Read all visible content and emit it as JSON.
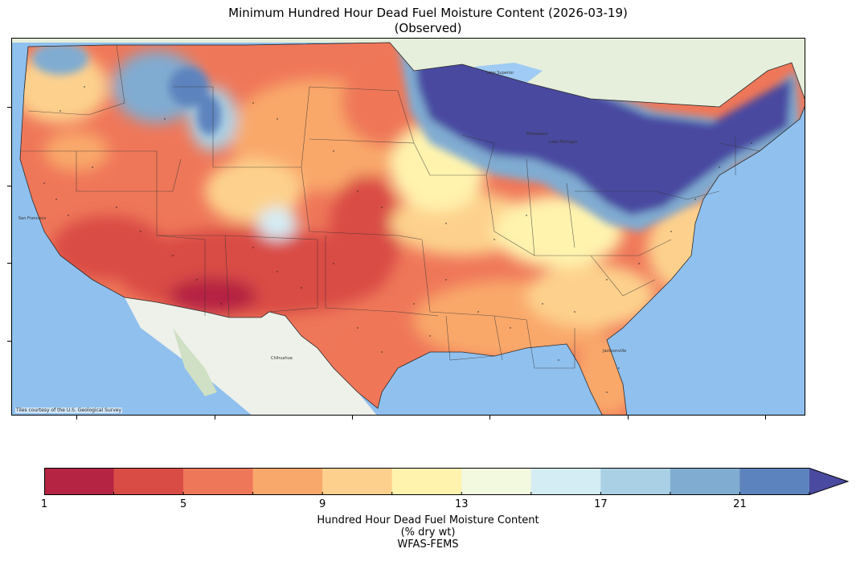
{
  "title": {
    "line1": "Minimum Hundred Hour Dead Fuel Moisture Content (2026-03-19)",
    "line2": "(Observed)"
  },
  "map": {
    "attribution": "Tiles courtesy of the U.S. Geological Survey",
    "basemap_labels": {
      "chihuahua": "Chihuahua",
      "san_francisco": "San Francisco",
      "jacksonville": "Jacksonville",
      "milwaukee": "Milwaukee",
      "lake_michigan": "Lake Michigan",
      "lake_superior": "Lake Superior"
    }
  },
  "colorbar": {
    "tick_labels": [
      "1",
      "5",
      "9",
      "13",
      "17",
      "21"
    ],
    "tick_values": [
      1,
      5,
      9,
      13,
      17,
      21
    ],
    "range": [
      1,
      24
    ],
    "extend": "max",
    "bins": [
      {
        "from": 1,
        "to": 3,
        "color": "#b52442"
      },
      {
        "from": 3,
        "to": 5,
        "color": "#d94b45"
      },
      {
        "from": 5,
        "to": 7,
        "color": "#ef7759"
      },
      {
        "from": 7,
        "to": 9,
        "color": "#f9a86b"
      },
      {
        "from": 9,
        "to": 11,
        "color": "#fdd18d"
      },
      {
        "from": 11,
        "to": 13,
        "color": "#fff3ae"
      },
      {
        "from": 13,
        "to": 15,
        "color": "#f2f9df"
      },
      {
        "from": 15,
        "to": 17,
        "color": "#d4ecf4"
      },
      {
        "from": 17,
        "to": 19,
        "color": "#a9d0e4"
      },
      {
        "from": 19,
        "to": 21,
        "color": "#80acd1"
      },
      {
        "from": 21,
        "to": 23,
        "color": "#5d83be"
      },
      {
        "from": 23,
        "to": 24,
        "color": "#4a4aa0"
      }
    ],
    "label_line1": "Hundred Hour Dead Fuel Moisture Content",
    "label_line2": "(% dry wt)",
    "label_line3": "WFAS-FEMS"
  }
}
